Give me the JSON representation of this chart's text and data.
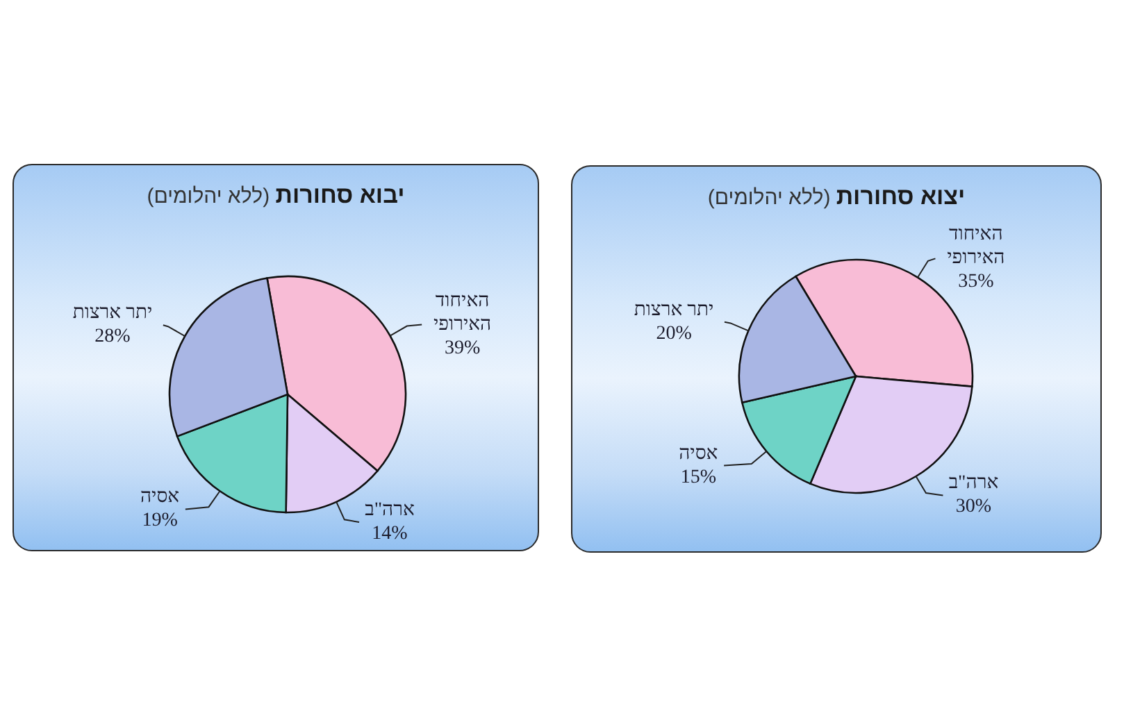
{
  "chart_data": [
    {
      "type": "pie",
      "title": "יבוא סחורות",
      "subtitle": "(ללא יהלומים)",
      "categories": [
        "האיחוד האירופי",
        "ארה\"ב",
        "אסיה",
        "יתר ארצות"
      ],
      "values": [
        39,
        14,
        19,
        28
      ],
      "colors": [
        "#f8bcd6",
        "#e2cdf5",
        "#6ed3c6",
        "#a9b6e4"
      ],
      "value_labels": [
        "39%",
        "14%",
        "19%",
        "28%"
      ]
    },
    {
      "type": "pie",
      "title": "יצוא סחורות",
      "subtitle": "(ללא יהלומים)",
      "categories": [
        "האיחוד האירופי",
        "ארה\"ב",
        "אסיה",
        "יתר ארצות"
      ],
      "values": [
        35,
        30,
        15,
        20
      ],
      "colors": [
        "#f8bcd6",
        "#e2cdf5",
        "#6ed3c6",
        "#a9b6e4"
      ],
      "value_labels": [
        "35%",
        "30%",
        "15%",
        "20%"
      ]
    }
  ]
}
